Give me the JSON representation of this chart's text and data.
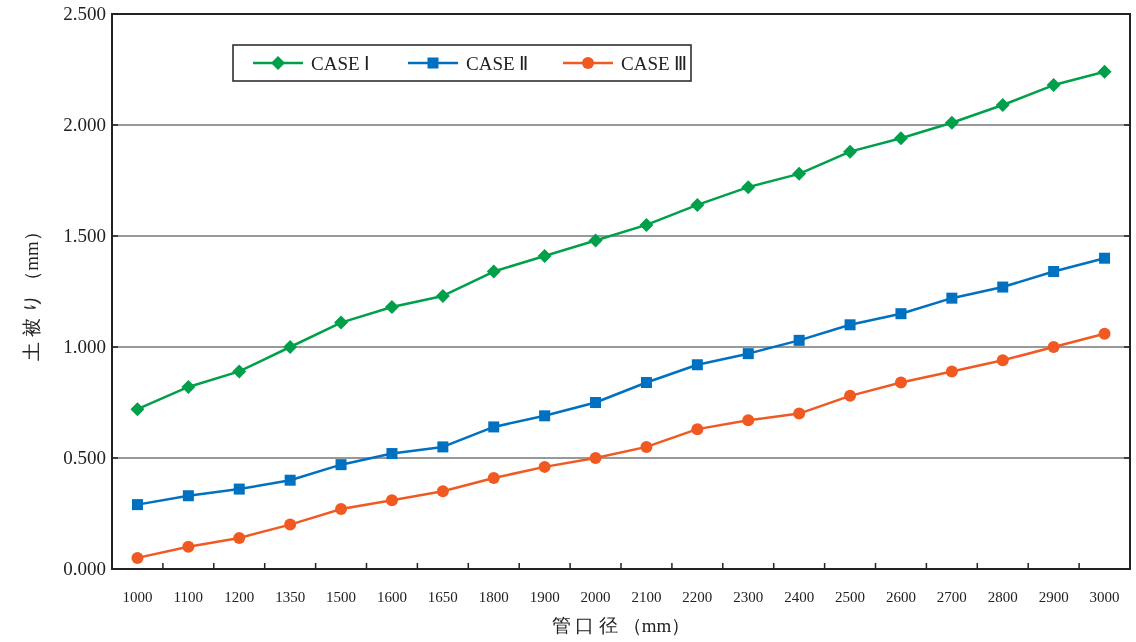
{
  "chart_data": {
    "type": "line",
    "xlabel": "管 口 径 （mm）",
    "ylabel": "土 被 り （mm）",
    "categories": [
      "1000",
      "1100",
      "1200",
      "1350",
      "1500",
      "1600",
      "1650",
      "1800",
      "1900",
      "2000",
      "2100",
      "2200",
      "2300",
      "2400",
      "2500",
      "2600",
      "2700",
      "2800",
      "2900",
      "3000"
    ],
    "series": [
      {
        "name": "CASE Ⅰ",
        "color": "#00a04a",
        "marker": "diamond",
        "values": [
          0.72,
          0.82,
          0.89,
          1.0,
          1.11,
          1.18,
          1.23,
          1.34,
          1.41,
          1.48,
          1.55,
          1.64,
          1.72,
          1.78,
          1.88,
          1.94,
          2.01,
          2.09,
          2.18,
          2.24
        ]
      },
      {
        "name": "CASE Ⅱ",
        "color": "#0070c0",
        "marker": "square",
        "values": [
          0.29,
          0.33,
          0.36,
          0.4,
          0.47,
          0.52,
          0.55,
          0.64,
          0.69,
          0.75,
          0.84,
          0.92,
          0.97,
          1.03,
          1.1,
          1.15,
          1.22,
          1.27,
          1.34,
          1.4
        ]
      },
      {
        "name": "CASE Ⅲ",
        "color": "#f05a22",
        "marker": "circle",
        "values": [
          0.05,
          0.1,
          0.14,
          0.2,
          0.27,
          0.31,
          0.35,
          0.41,
          0.46,
          0.5,
          0.55,
          0.63,
          0.67,
          0.7,
          0.78,
          0.84,
          0.89,
          0.94,
          1.0,
          1.06
        ]
      }
    ],
    "ylim": [
      0,
      2.5
    ],
    "yticks": [
      {
        "value": 0,
        "label": "0.000"
      },
      {
        "value": 0.5,
        "label": "0.500"
      },
      {
        "value": 1,
        "label": "1.000"
      },
      {
        "value": 1.5,
        "label": "1.500"
      },
      {
        "value": 2,
        "label": "2.000"
      },
      {
        "value": 2.5,
        "label": "2.500"
      }
    ],
    "grid": "y",
    "legend": "top left",
    "line_style": "solid"
  }
}
